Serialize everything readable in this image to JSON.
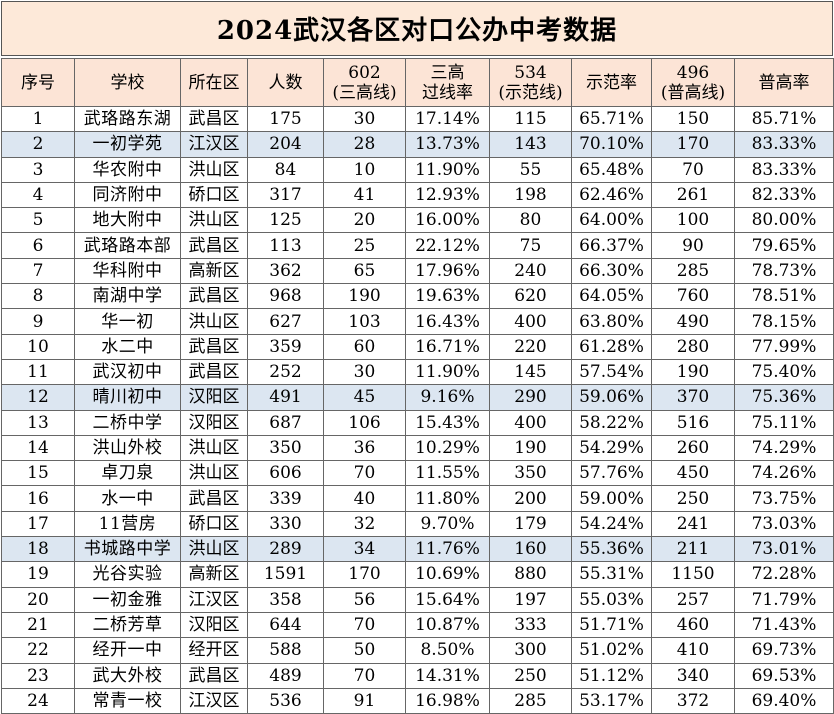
{
  "title": "2024武汉各区对口公办中考数据",
  "headers": [
    {
      "l1": "序号"
    },
    {
      "l1": "学校"
    },
    {
      "l1": "所在区"
    },
    {
      "l1": "人数"
    },
    {
      "l1": "602",
      "l2": "(三高线)"
    },
    {
      "l1": "三高",
      "l2": "过线率"
    },
    {
      "l1": "534",
      "l2": "(示范线)"
    },
    {
      "l1": "示范率"
    },
    {
      "l1": "496",
      "l2": "(普高线)"
    },
    {
      "l1": "普高率"
    }
  ],
  "highlight_color": "#dce6f1",
  "header_color": "#fce4d6",
  "title_color": "#fde9d9",
  "rows": [
    {
      "no": "1",
      "school": "武珞路东湖",
      "district": "武昌区",
      "count": "175",
      "l602": "30",
      "r602": "17.14%",
      "l534": "115",
      "r534": "65.71%",
      "l496": "150",
      "r496": "85.71%",
      "hl": false
    },
    {
      "no": "2",
      "school": "一初学苑",
      "district": "江汉区",
      "count": "204",
      "l602": "28",
      "r602": "13.73%",
      "l534": "143",
      "r534": "70.10%",
      "l496": "170",
      "r496": "83.33%",
      "hl": true
    },
    {
      "no": "3",
      "school": "华农附中",
      "district": "洪山区",
      "count": "84",
      "l602": "10",
      "r602": "11.90%",
      "l534": "55",
      "r534": "65.48%",
      "l496": "70",
      "r496": "83.33%",
      "hl": false
    },
    {
      "no": "4",
      "school": "同济附中",
      "district": "硚口区",
      "count": "317",
      "l602": "41",
      "r602": "12.93%",
      "l534": "198",
      "r534": "62.46%",
      "l496": "261",
      "r496": "82.33%",
      "hl": false
    },
    {
      "no": "5",
      "school": "地大附中",
      "district": "洪山区",
      "count": "125",
      "l602": "20",
      "r602": "16.00%",
      "l534": "80",
      "r534": "64.00%",
      "l496": "100",
      "r496": "80.00%",
      "hl": false
    },
    {
      "no": "6",
      "school": "武珞路本部",
      "district": "武昌区",
      "count": "113",
      "l602": "25",
      "r602": "22.12%",
      "l534": "75",
      "r534": "66.37%",
      "l496": "90",
      "r496": "79.65%",
      "hl": false
    },
    {
      "no": "7",
      "school": "华科附中",
      "district": "高新区",
      "count": "362",
      "l602": "65",
      "r602": "17.96%",
      "l534": "240",
      "r534": "66.30%",
      "l496": "285",
      "r496": "78.73%",
      "hl": false
    },
    {
      "no": "8",
      "school": "南湖中学",
      "district": "武昌区",
      "count": "968",
      "l602": "190",
      "r602": "19.63%",
      "l534": "620",
      "r534": "64.05%",
      "l496": "760",
      "r496": "78.51%",
      "hl": false
    },
    {
      "no": "9",
      "school": "华一初",
      "district": "洪山区",
      "count": "627",
      "l602": "103",
      "r602": "16.43%",
      "l534": "400",
      "r534": "63.80%",
      "l496": "490",
      "r496": "78.15%",
      "hl": false
    },
    {
      "no": "10",
      "school": "水二中",
      "district": "武昌区",
      "count": "359",
      "l602": "60",
      "r602": "16.71%",
      "l534": "220",
      "r534": "61.28%",
      "l496": "280",
      "r496": "77.99%",
      "hl": false
    },
    {
      "no": "11",
      "school": "武汉初中",
      "district": "武昌区",
      "count": "252",
      "l602": "30",
      "r602": "11.90%",
      "l534": "145",
      "r534": "57.54%",
      "l496": "190",
      "r496": "75.40%",
      "hl": false
    },
    {
      "no": "12",
      "school": "晴川初中",
      "district": "汉阳区",
      "count": "491",
      "l602": "45",
      "r602": "9.16%",
      "l534": "290",
      "r534": "59.06%",
      "l496": "370",
      "r496": "75.36%",
      "hl": true
    },
    {
      "no": "13",
      "school": "二桥中学",
      "district": "汉阳区",
      "count": "687",
      "l602": "106",
      "r602": "15.43%",
      "l534": "400",
      "r534": "58.22%",
      "l496": "516",
      "r496": "75.11%",
      "hl": false
    },
    {
      "no": "14",
      "school": "洪山外校",
      "district": "洪山区",
      "count": "350",
      "l602": "36",
      "r602": "10.29%",
      "l534": "190",
      "r534": "54.29%",
      "l496": "260",
      "r496": "74.29%",
      "hl": false
    },
    {
      "no": "15",
      "school": "卓刀泉",
      "district": "洪山区",
      "count": "606",
      "l602": "70",
      "r602": "11.55%",
      "l534": "350",
      "r534": "57.76%",
      "l496": "450",
      "r496": "74.26%",
      "hl": false
    },
    {
      "no": "16",
      "school": "水一中",
      "district": "武昌区",
      "count": "339",
      "l602": "40",
      "r602": "11.80%",
      "l534": "200",
      "r534": "59.00%",
      "l496": "250",
      "r496": "73.75%",
      "hl": false
    },
    {
      "no": "17",
      "school": "11营房",
      "district": "硚口区",
      "count": "330",
      "l602": "32",
      "r602": "9.70%",
      "l534": "179",
      "r534": "54.24%",
      "l496": "241",
      "r496": "73.03%",
      "hl": false
    },
    {
      "no": "18",
      "school": "书城路中学",
      "district": "洪山区",
      "count": "289",
      "l602": "34",
      "r602": "11.76%",
      "l534": "160",
      "r534": "55.36%",
      "l496": "211",
      "r496": "73.01%",
      "hl": true
    },
    {
      "no": "19",
      "school": "光谷实验",
      "district": "高新区",
      "count": "1591",
      "l602": "170",
      "r602": "10.69%",
      "l534": "880",
      "r534": "55.31%",
      "l496": "1150",
      "r496": "72.28%",
      "hl": false
    },
    {
      "no": "20",
      "school": "一初金雅",
      "district": "江汉区",
      "count": "358",
      "l602": "56",
      "r602": "15.64%",
      "l534": "197",
      "r534": "55.03%",
      "l496": "257",
      "r496": "71.79%",
      "hl": false
    },
    {
      "no": "21",
      "school": "二桥芳草",
      "district": "汉阳区",
      "count": "644",
      "l602": "70",
      "r602": "10.87%",
      "l534": "333",
      "r534": "51.71%",
      "l496": "460",
      "r496": "71.43%",
      "hl": false
    },
    {
      "no": "22",
      "school": "经开一中",
      "district": "经开区",
      "count": "588",
      "l602": "50",
      "r602": "8.50%",
      "l534": "300",
      "r534": "51.02%",
      "l496": "410",
      "r496": "69.73%",
      "hl": false
    },
    {
      "no": "23",
      "school": "武大外校",
      "district": "武昌区",
      "count": "489",
      "l602": "70",
      "r602": "14.31%",
      "l534": "250",
      "r534": "51.12%",
      "l496": "340",
      "r496": "69.53%",
      "hl": false
    },
    {
      "no": "24",
      "school": "常青一校",
      "district": "江汉区",
      "count": "536",
      "l602": "91",
      "r602": "16.98%",
      "l534": "285",
      "r534": "53.17%",
      "l496": "372",
      "r496": "69.40%",
      "hl": false
    }
  ]
}
